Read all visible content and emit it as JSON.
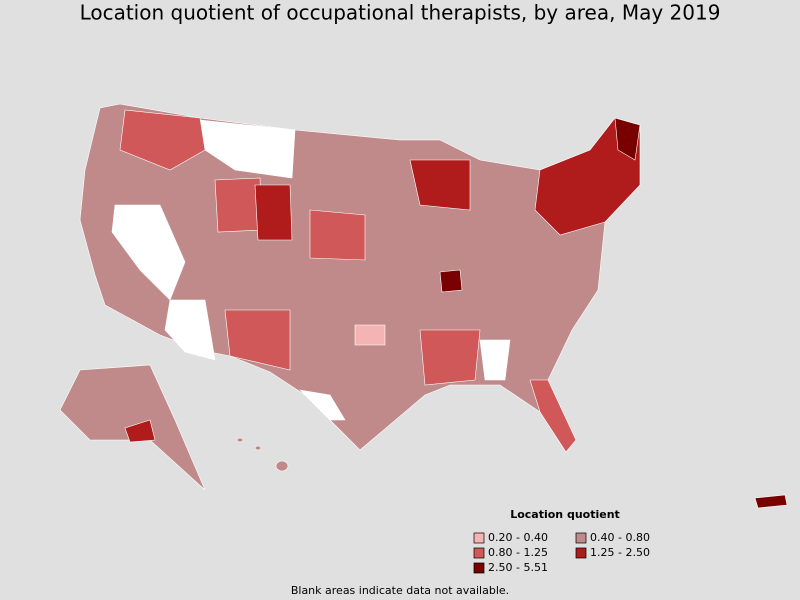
{
  "title": "Location quotient of occupational therapists, by area, May 2019",
  "legend": {
    "title": "Location quotient",
    "items": [
      {
        "label": "0.20 - 0.40",
        "color": "#f5b4b4"
      },
      {
        "label": "0.40 - 0.80",
        "color": "#c08a8a"
      },
      {
        "label": "0.80 - 1.25",
        "color": "#d05858"
      },
      {
        "label": "1.25 - 2.50",
        "color": "#b01c1c"
      },
      {
        "label": "2.50 - 5.51",
        "color": "#780000"
      }
    ]
  },
  "note": "Blank areas indicate data not available."
}
